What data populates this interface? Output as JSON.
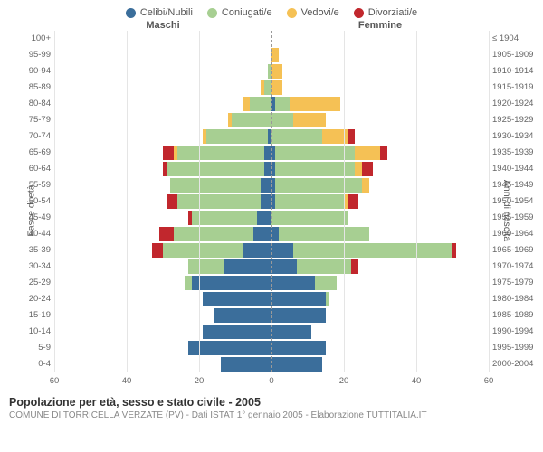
{
  "legend": [
    {
      "label": "Celibi/Nubili",
      "color": "#3b6e9b"
    },
    {
      "label": "Coniugati/e",
      "color": "#a7cf92"
    },
    {
      "label": "Vedovi/e",
      "color": "#f5c155"
    },
    {
      "label": "Divorziati/e",
      "color": "#c1272d"
    }
  ],
  "headers": {
    "male": "Maschi",
    "female": "Femmine"
  },
  "y_left_title": "Fasce di età",
  "y_right_title": "Anni di nascita",
  "x_axis": {
    "ticks": [
      60,
      40,
      20,
      0,
      20,
      40,
      60
    ],
    "max": 60
  },
  "grid_color": "#e5e5e5",
  "center_color": "#999999",
  "background": "#ffffff",
  "colors": {
    "single": "#3b6e9b",
    "married": "#a7cf92",
    "widowed": "#f5c155",
    "divorced": "#c1272d"
  },
  "rows": [
    {
      "age": "100+",
      "birth": "≤ 1904",
      "m": {
        "s": 0,
        "m": 0,
        "w": 0,
        "d": 0
      },
      "f": {
        "s": 0,
        "m": 0,
        "w": 0,
        "d": 0
      }
    },
    {
      "age": "95-99",
      "birth": "1905-1909",
      "m": {
        "s": 0,
        "m": 0,
        "w": 0,
        "d": 0
      },
      "f": {
        "s": 0,
        "m": 0,
        "w": 2,
        "d": 0
      }
    },
    {
      "age": "90-94",
      "birth": "1910-1914",
      "m": {
        "s": 0,
        "m": 1,
        "w": 0,
        "d": 0
      },
      "f": {
        "s": 0,
        "m": 0,
        "w": 3,
        "d": 0
      }
    },
    {
      "age": "85-89",
      "birth": "1915-1919",
      "m": {
        "s": 0,
        "m": 2,
        "w": 1,
        "d": 0
      },
      "f": {
        "s": 0,
        "m": 0,
        "w": 3,
        "d": 0
      }
    },
    {
      "age": "80-84",
      "birth": "1920-1924",
      "m": {
        "s": 0,
        "m": 6,
        "w": 2,
        "d": 0
      },
      "f": {
        "s": 1,
        "m": 4,
        "w": 14,
        "d": 0
      }
    },
    {
      "age": "75-79",
      "birth": "1925-1929",
      "m": {
        "s": 0,
        "m": 11,
        "w": 1,
        "d": 0
      },
      "f": {
        "s": 0,
        "m": 6,
        "w": 9,
        "d": 0
      }
    },
    {
      "age": "70-74",
      "birth": "1930-1934",
      "m": {
        "s": 1,
        "m": 17,
        "w": 1,
        "d": 0
      },
      "f": {
        "s": 0,
        "m": 14,
        "w": 7,
        "d": 2
      }
    },
    {
      "age": "65-69",
      "birth": "1935-1939",
      "m": {
        "s": 2,
        "m": 24,
        "w": 1,
        "d": 3
      },
      "f": {
        "s": 1,
        "m": 22,
        "w": 7,
        "d": 2
      }
    },
    {
      "age": "60-64",
      "birth": "1940-1944",
      "m": {
        "s": 2,
        "m": 27,
        "w": 0,
        "d": 1
      },
      "f": {
        "s": 1,
        "m": 22,
        "w": 2,
        "d": 3
      }
    },
    {
      "age": "55-59",
      "birth": "1945-1949",
      "m": {
        "s": 3,
        "m": 25,
        "w": 0,
        "d": 0
      },
      "f": {
        "s": 1,
        "m": 24,
        "w": 2,
        "d": 0
      }
    },
    {
      "age": "50-54",
      "birth": "1950-1954",
      "m": {
        "s": 3,
        "m": 23,
        "w": 0,
        "d": 3
      },
      "f": {
        "s": 1,
        "m": 19,
        "w": 1,
        "d": 3
      }
    },
    {
      "age": "45-49",
      "birth": "1955-1959",
      "m": {
        "s": 4,
        "m": 18,
        "w": 0,
        "d": 1
      },
      "f": {
        "s": 0,
        "m": 21,
        "w": 0,
        "d": 0
      }
    },
    {
      "age": "40-44",
      "birth": "1960-1964",
      "m": {
        "s": 5,
        "m": 22,
        "w": 0,
        "d": 4
      },
      "f": {
        "s": 2,
        "m": 25,
        "w": 0,
        "d": 0
      }
    },
    {
      "age": "35-39",
      "birth": "1965-1969",
      "m": {
        "s": 8,
        "m": 22,
        "w": 0,
        "d": 3
      },
      "f": {
        "s": 6,
        "m": 44,
        "w": 0,
        "d": 1
      }
    },
    {
      "age": "30-34",
      "birth": "1970-1974",
      "m": {
        "s": 13,
        "m": 10,
        "w": 0,
        "d": 0
      },
      "f": {
        "s": 7,
        "m": 15,
        "w": 0,
        "d": 2
      }
    },
    {
      "age": "25-29",
      "birth": "1975-1979",
      "m": {
        "s": 22,
        "m": 2,
        "w": 0,
        "d": 0
      },
      "f": {
        "s": 12,
        "m": 6,
        "w": 0,
        "d": 0
      }
    },
    {
      "age": "20-24",
      "birth": "1980-1984",
      "m": {
        "s": 19,
        "m": 0,
        "w": 0,
        "d": 0
      },
      "f": {
        "s": 15,
        "m": 1,
        "w": 0,
        "d": 0
      }
    },
    {
      "age": "15-19",
      "birth": "1985-1989",
      "m": {
        "s": 16,
        "m": 0,
        "w": 0,
        "d": 0
      },
      "f": {
        "s": 15,
        "m": 0,
        "w": 0,
        "d": 0
      }
    },
    {
      "age": "10-14",
      "birth": "1990-1994",
      "m": {
        "s": 19,
        "m": 0,
        "w": 0,
        "d": 0
      },
      "f": {
        "s": 11,
        "m": 0,
        "w": 0,
        "d": 0
      }
    },
    {
      "age": "5-9",
      "birth": "1995-1999",
      "m": {
        "s": 23,
        "m": 0,
        "w": 0,
        "d": 0
      },
      "f": {
        "s": 15,
        "m": 0,
        "w": 0,
        "d": 0
      }
    },
    {
      "age": "0-4",
      "birth": "2000-2004",
      "m": {
        "s": 14,
        "m": 0,
        "w": 0,
        "d": 0
      },
      "f": {
        "s": 14,
        "m": 0,
        "w": 0,
        "d": 0
      }
    }
  ],
  "footer": {
    "title": "Popolazione per età, sesso e stato civile - 2005",
    "sub": "COMUNE DI TORRICELLA VERZATE (PV) - Dati ISTAT 1° gennaio 2005 - Elaborazione TUTTITALIA.IT"
  }
}
